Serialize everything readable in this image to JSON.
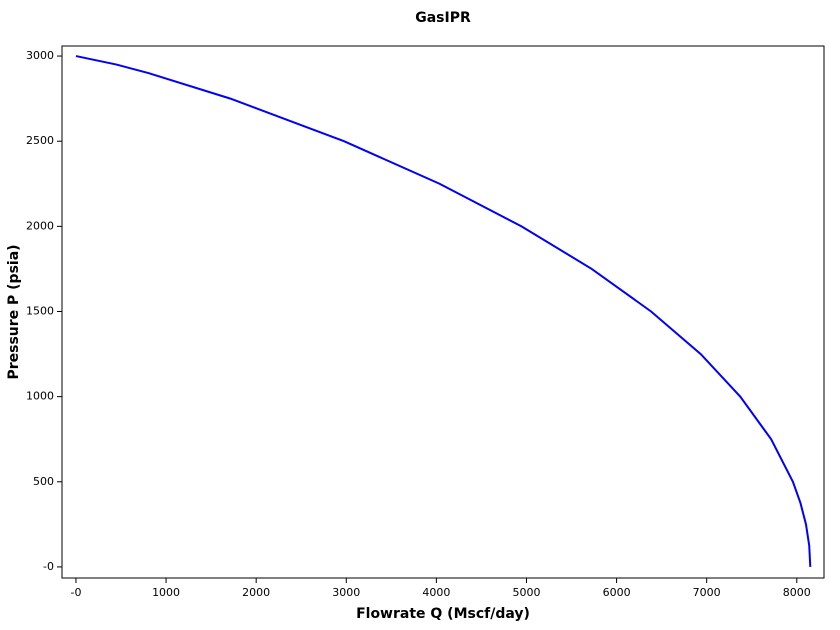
{
  "chart_data": {
    "type": "line",
    "title": "GasIPR",
    "x_label": "Flowrate Q (Mscf/day)",
    "y_label": "Pressure P (psia)",
    "x": [
      0,
      450,
      804,
      1714,
      2975,
      4035,
      4945,
      5724,
      6383,
      6934,
      7373,
      7715,
      7957,
      8041,
      8102,
      8138,
      8150
    ],
    "series": [
      {
        "name": "GasIPR",
        "color": "#0000ff",
        "values": [
          3000,
          2950,
          2900,
          2750,
          2500,
          2250,
          2000,
          1750,
          1500,
          1250,
          1000,
          750,
          500,
          375,
          250,
          125,
          0
        ]
      }
    ],
    "xlim": [
      -155,
      8302
    ],
    "ylim": [
      -65,
      3059
    ],
    "xticks": [
      {
        "value": 0,
        "label": "-0"
      },
      1000,
      2000,
      3000,
      4000,
      5000,
      6000,
      7000,
      8000
    ],
    "yticks": [
      {
        "value": 0,
        "label": "-0"
      },
      500,
      1000,
      1500,
      2000,
      2500,
      3000
    ]
  }
}
